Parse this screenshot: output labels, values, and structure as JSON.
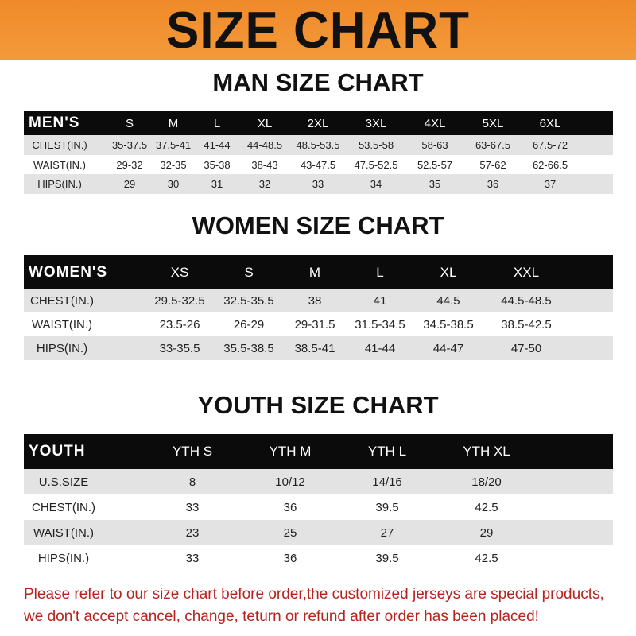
{
  "banner": {
    "title": "SIZE CHART",
    "color": "#f08a2a"
  },
  "men": {
    "title": "MAN SIZE CHART",
    "header_label": "MEN'S",
    "sizes": [
      "S",
      "M",
      "L",
      "XL",
      "2XL",
      "3XL",
      "4XL",
      "5XL",
      "6XL"
    ],
    "rows": [
      {
        "label": "CHEST(IN.)",
        "values": [
          "35-37.5",
          "37.5-41",
          "41-44",
          "44-48.5",
          "48.5-53.5",
          "53.5-58",
          "58-63",
          "63-67.5",
          "67.5-72"
        ]
      },
      {
        "label": "WAIST(IN.)",
        "values": [
          "29-32",
          "32-35",
          "35-38",
          "38-43",
          "43-47.5",
          "47.5-52.5",
          "52.5-57",
          "57-62",
          "62-66.5"
        ]
      },
      {
        "label": "HIPS(IN.)",
        "values": [
          "29",
          "30",
          "31",
          "32",
          "33",
          "34",
          "35",
          "36",
          "37"
        ]
      }
    ]
  },
  "women": {
    "title": "WOMEN SIZE CHART",
    "header_label": "WOMEN'S",
    "sizes": [
      "XS",
      "S",
      "M",
      "L",
      "XL",
      "XXL"
    ],
    "rows": [
      {
        "label": "CHEST(IN.)",
        "values": [
          "29.5-32.5",
          "32.5-35.5",
          "38",
          "41",
          "44.5",
          "44.5-48.5"
        ]
      },
      {
        "label": "WAIST(IN.)",
        "values": [
          "23.5-26",
          "26-29",
          "29-31.5",
          "31.5-34.5",
          "34.5-38.5",
          "38.5-42.5"
        ]
      },
      {
        "label": "HIPS(IN.)",
        "values": [
          "33-35.5",
          "35.5-38.5",
          "38.5-41",
          "41-44",
          "44-47",
          "47-50"
        ]
      }
    ]
  },
  "youth": {
    "title": "YOUTH SIZE CHART",
    "header_label": "YOUTH",
    "sizes": [
      "YTH S",
      "YTH M",
      "YTH L",
      "YTH XL"
    ],
    "rows": [
      {
        "label": "U.S.SIZE",
        "values": [
          "8",
          "10/12",
          "14/16",
          "18/20"
        ]
      },
      {
        "label": "CHEST(IN.)",
        "values": [
          "33",
          "36",
          "39.5",
          "42.5"
        ]
      },
      {
        "label": "WAIST(IN.)",
        "values": [
          "23",
          "25",
          "27",
          "29"
        ]
      },
      {
        "label": "HIPS(IN.)",
        "values": [
          "33",
          "36",
          "39.5",
          "42.5"
        ]
      }
    ]
  },
  "notice": {
    "line1": "Please refer to our size chart before order,the customized jerseys are special products,",
    "line2": "we don't accept cancel, change, teturn or refund after order has been placed!",
    "color": "#b8231f"
  }
}
